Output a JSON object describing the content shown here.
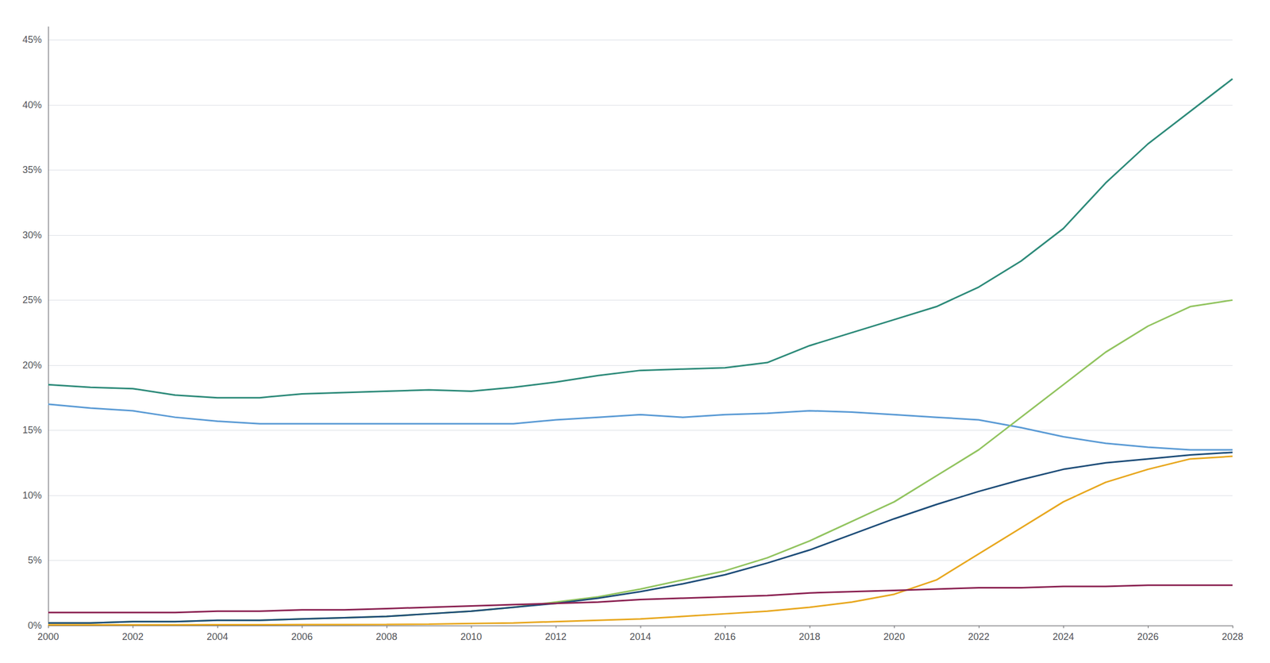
{
  "chart_data": {
    "type": "line",
    "x": [
      2000,
      2001,
      2002,
      2003,
      2004,
      2005,
      2006,
      2007,
      2008,
      2009,
      2010,
      2011,
      2012,
      2013,
      2014,
      2015,
      2016,
      2017,
      2018,
      2019,
      2020,
      2021,
      2022,
      2023,
      2024,
      2025,
      2026,
      2027,
      2028
    ],
    "series": [
      {
        "color": "#2e8b7a",
        "values": [
          18.5,
          18.3,
          18.2,
          17.7,
          17.5,
          17.5,
          17.8,
          17.9,
          18.0,
          18.1,
          18.0,
          18.3,
          18.7,
          19.2,
          19.6,
          19.7,
          19.8,
          20.2,
          21.5,
          22.5,
          23.5,
          24.5,
          26.0,
          28.0,
          30.5,
          34.0,
          37.0,
          39.5,
          42.0
        ]
      },
      {
        "color": "#5b9bd5",
        "values": [
          17.0,
          16.7,
          16.5,
          16.0,
          15.7,
          15.5,
          15.5,
          15.5,
          15.5,
          15.5,
          15.5,
          15.5,
          15.8,
          16.0,
          16.2,
          16.0,
          16.2,
          16.3,
          16.5,
          16.4,
          16.2,
          16.0,
          15.8,
          15.2,
          14.5,
          14.0,
          13.7,
          13.5,
          13.5
        ]
      },
      {
        "color": "#92c460",
        "values": [
          0.2,
          0.2,
          0.3,
          0.3,
          0.4,
          0.4,
          0.5,
          0.6,
          0.7,
          0.9,
          1.1,
          1.4,
          1.8,
          2.2,
          2.8,
          3.5,
          4.2,
          5.2,
          6.5,
          8.0,
          9.5,
          11.5,
          13.5,
          16.0,
          18.5,
          21.0,
          23.0,
          24.5,
          25.0
        ]
      },
      {
        "color": "#1f4e79",
        "values": [
          0.2,
          0.2,
          0.3,
          0.3,
          0.4,
          0.4,
          0.5,
          0.6,
          0.7,
          0.9,
          1.1,
          1.4,
          1.7,
          2.1,
          2.6,
          3.2,
          3.9,
          4.8,
          5.8,
          7.0,
          8.2,
          9.3,
          10.3,
          11.2,
          12.0,
          12.5,
          12.8,
          13.1,
          13.3
        ]
      },
      {
        "color": "#e8a820",
        "values": [
          0.05,
          0.05,
          0.05,
          0.05,
          0.06,
          0.06,
          0.07,
          0.07,
          0.08,
          0.1,
          0.15,
          0.2,
          0.3,
          0.4,
          0.5,
          0.7,
          0.9,
          1.1,
          1.4,
          1.8,
          2.4,
          3.5,
          5.5,
          7.5,
          9.5,
          11.0,
          12.0,
          12.8,
          13.0
        ]
      },
      {
        "color": "#8b2252",
        "values": [
          1.0,
          1.0,
          1.0,
          1.0,
          1.1,
          1.1,
          1.2,
          1.2,
          1.3,
          1.4,
          1.5,
          1.6,
          1.7,
          1.8,
          2.0,
          2.1,
          2.2,
          2.3,
          2.5,
          2.6,
          2.7,
          2.8,
          2.9,
          2.9,
          3.0,
          3.0,
          3.1,
          3.1,
          3.1
        ]
      }
    ],
    "xlim": [
      2000,
      2028
    ],
    "xticks": [
      2000,
      2002,
      2004,
      2006,
      2008,
      2010,
      2012,
      2014,
      2016,
      2018,
      2020,
      2022,
      2024,
      2026,
      2028
    ],
    "ylim": [
      0,
      46
    ],
    "yticks": [
      {
        "value": 0,
        "label": "0%"
      },
      {
        "value": 5,
        "label": "5%"
      },
      {
        "value": 10,
        "label": "10%"
      },
      {
        "value": 15,
        "label": "15%"
      },
      {
        "value": 20,
        "label": "20%"
      },
      {
        "value": 25,
        "label": "25%"
      },
      {
        "value": 30,
        "label": "30%"
      },
      {
        "value": 35,
        "label": "35%"
      },
      {
        "value": 40,
        "label": "40%"
      },
      {
        "value": 45,
        "label": "45%"
      }
    ],
    "grid": true
  }
}
